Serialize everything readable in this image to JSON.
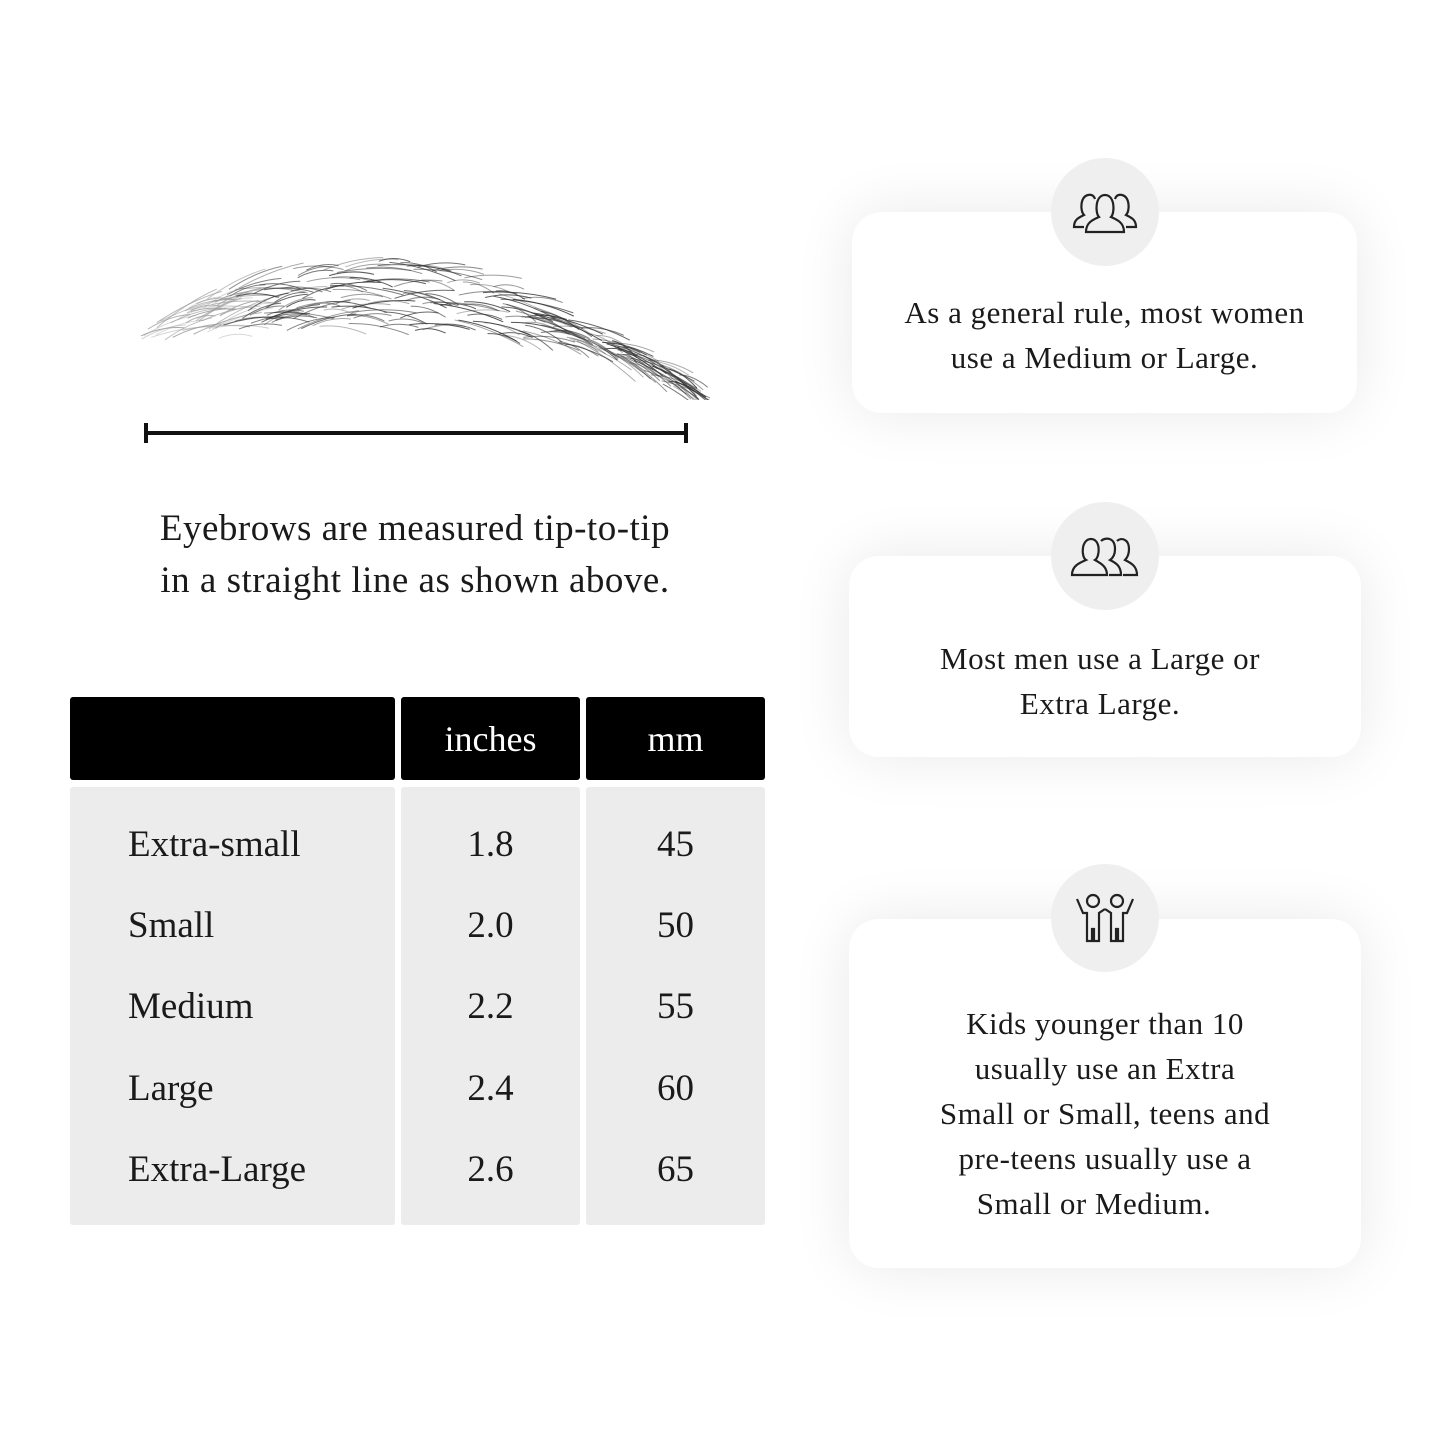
{
  "left": {
    "caption_line1": "Eyebrows are measured tip-to-tip",
    "caption_line2": "in a straight line as shown above."
  },
  "table": {
    "headers": [
      "",
      "inches",
      "mm"
    ],
    "rows": [
      {
        "size": "Extra-small",
        "inches": "1.8",
        "mm": "45"
      },
      {
        "size": "Small",
        "inches": "2.0",
        "mm": "50"
      },
      {
        "size": "Medium",
        "inches": "2.2",
        "mm": "55"
      },
      {
        "size": "Large",
        "inches": "2.4",
        "mm": "60"
      },
      {
        "size": "Extra-Large",
        "inches": "2.6",
        "mm": "65"
      }
    ]
  },
  "cards": [
    {
      "icon": "women-group-icon",
      "lines": [
        "As a general rule, most women",
        "use a Medium or Large."
      ]
    },
    {
      "icon": "men-group-icon",
      "lines": [
        "Most men use a Large or",
        "Extra Large."
      ]
    },
    {
      "icon": "kids-icon",
      "lines": [
        "Kids younger than 10",
        "usually use an Extra",
        "Small or Small, teens and",
        "pre-teens usually use a",
        "Small or Medium."
      ]
    }
  ],
  "colors": {
    "header_bg": "#000000",
    "body_bg": "#ececec",
    "icon_circle": "#efefef"
  }
}
